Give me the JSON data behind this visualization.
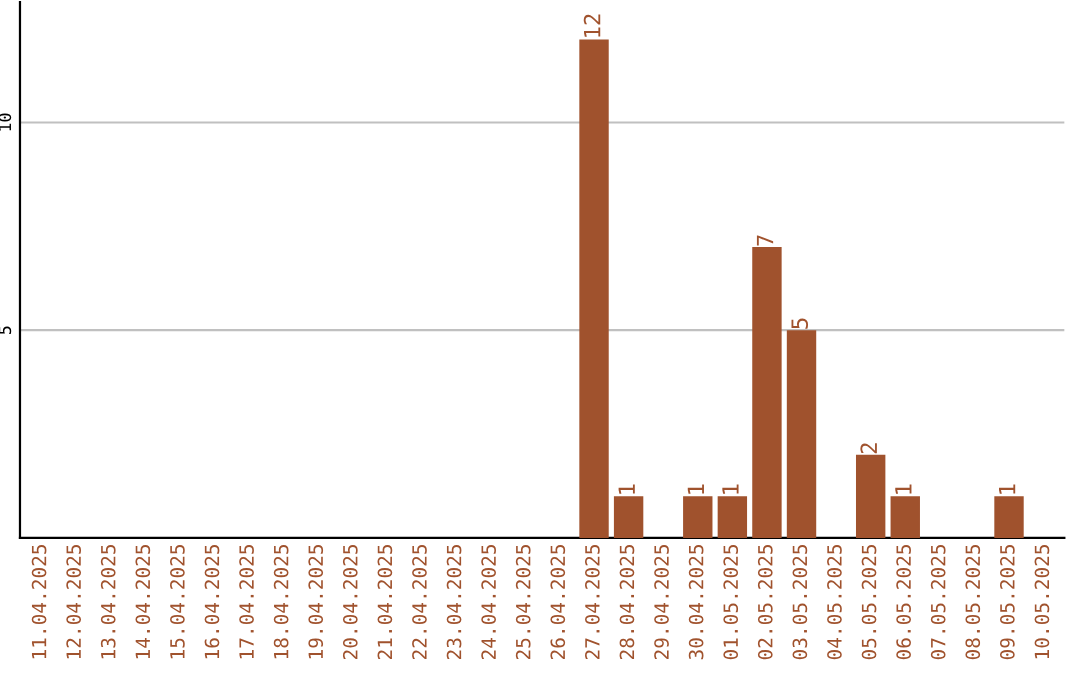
{
  "chart_data": {
    "type": "bar",
    "categories": [
      "11.04.2025",
      "12.04.2025",
      "13.04.2025",
      "14.04.2025",
      "15.04.2025",
      "16.04.2025",
      "17.04.2025",
      "18.04.2025",
      "19.04.2025",
      "20.04.2025",
      "21.04.2025",
      "22.04.2025",
      "23.04.2025",
      "24.04.2025",
      "25.04.2025",
      "26.04.2025",
      "27.04.2025",
      "28.04.2025",
      "29.04.2025",
      "30.04.2025",
      "01.05.2025",
      "02.05.2025",
      "03.05.2025",
      "04.05.2025",
      "05.05.2025",
      "06.05.2025",
      "07.05.2025",
      "08.05.2025",
      "09.05.2025",
      "10.05.2025"
    ],
    "values": [
      0,
      0,
      0,
      0,
      0,
      0,
      0,
      0,
      0,
      0,
      0,
      0,
      0,
      0,
      0,
      0,
      12,
      1,
      0,
      1,
      1,
      7,
      5,
      0,
      2,
      1,
      0,
      0,
      1,
      0
    ],
    "value_labels": [
      null,
      null,
      null,
      null,
      null,
      null,
      null,
      null,
      null,
      null,
      null,
      null,
      null,
      null,
      null,
      null,
      "12",
      "1",
      null,
      "1",
      "1",
      "7",
      "5",
      null,
      "2",
      "1",
      null,
      null,
      "1",
      null
    ],
    "color": "#a0522d",
    "ylim": [
      0,
      12.9
    ],
    "yticks": [
      5,
      10
    ],
    "grid": "y",
    "legend": false
  }
}
